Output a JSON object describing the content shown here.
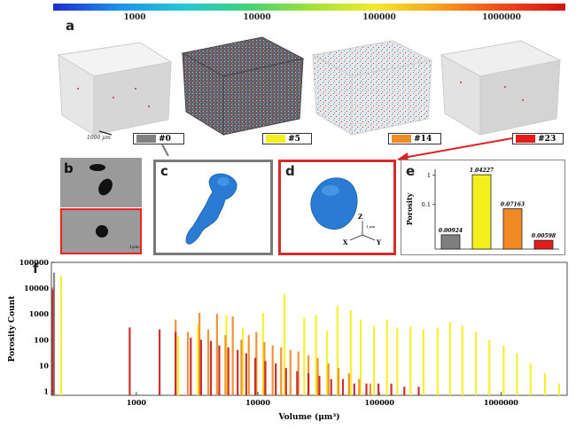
{
  "colorbar": {
    "ticks": [
      "1000",
      "10000",
      "100000",
      "1000000"
    ]
  },
  "panels": {
    "a": {
      "letter": "a",
      "scale_label": "1000 μm",
      "samples": [
        {
          "label": "#0",
          "color": "#7f7f7f"
        },
        {
          "label": "#5",
          "color": "#f4f01e"
        },
        {
          "label": "#14",
          "color": "#f08a25"
        },
        {
          "label": "#23",
          "color": "#e51b1b"
        }
      ]
    },
    "b": {
      "letter": "b",
      "scale_label": "1μm"
    },
    "c": {
      "letter": "c"
    },
    "d": {
      "letter": "d",
      "axes": {
        "z": "Z",
        "x": "X",
        "y": "Y",
        "scale": "1 μm"
      }
    },
    "e": {
      "letter": "e"
    },
    "f": {
      "letter": "f"
    }
  },
  "chart_data": [
    {
      "type": "bar",
      "ylabel": "Porosity",
      "yscale": "log",
      "yticks": [
        "1",
        "0.1"
      ],
      "categories": [
        "#0",
        "#5",
        "#14",
        "#23"
      ],
      "values": [
        0.00924,
        1.04227,
        0.07163,
        0.00598
      ],
      "value_labels": [
        "0.00924",
        "1.04227",
        "0.07163",
        "0.00598"
      ],
      "colors": [
        "#7f7f7f",
        "#f4f01e",
        "#f08a25",
        "#e51b1b"
      ]
    },
    {
      "type": "bar",
      "xlabel": "Volume (μm³)",
      "ylabel": "Porosity Count",
      "xscale": "log",
      "yscale": "log",
      "xticks": [
        "1000",
        "10000",
        "100000",
        "1000000"
      ],
      "yticks": [
        "1",
        "10",
        "100",
        "1000",
        "10000",
        "100000"
      ],
      "xlim": [
        200,
        3500000
      ],
      "ylim": [
        0.7,
        100000
      ],
      "series": [
        {
          "color": "#7f7f7f",
          "x": [
            210
          ],
          "values": [
            40000
          ]
        },
        {
          "color": "#f4f01e",
          "x": [
            240,
            2200,
            3200,
            5500,
            7500,
            11000,
            16500,
            24000,
            30000,
            37000,
            45000,
            58000,
            70000,
            90000,
            115000,
            140000,
            180000,
            230000,
            300000,
            380000,
            480000,
            620000,
            800000,
            1050000,
            1350000,
            1750000,
            2300000,
            3000000
          ],
          "values": [
            30000,
            140,
            400,
            900,
            280,
            1100,
            5800,
            700,
            900,
            220,
            2000,
            1400,
            600,
            350,
            600,
            300,
            320,
            250,
            300,
            500,
            350,
            200,
            100,
            60,
            30,
            12,
            5,
            2
          ]
        },
        {
          "color": "#f08a25",
          "x": [
            2100,
            2650,
            3300,
            3900,
            4600,
            5400,
            6200,
            7300,
            8400,
            9700,
            11300,
            13200,
            15500,
            18500,
            21500,
            26000,
            31000,
            38000,
            46000,
            56000,
            68000,
            84000
          ],
          "values": [
            600,
            200,
            1100,
            250,
            1000,
            150,
            800,
            100,
            150,
            200,
            80,
            60,
            50,
            40,
            35,
            25,
            20,
            12,
            8,
            5,
            3,
            2
          ]
        },
        {
          "color": "#c62121",
          "x": [
            205,
            880,
            1550,
            2100,
            2800,
            3400,
            4100,
            4800,
            5700,
            6800,
            8000,
            9500,
            11500,
            14000,
            17000,
            21000,
            26000,
            32000,
            40000,
            50000,
            62000,
            78000,
            98000,
            125000,
            160000,
            210000
          ],
          "values": [
            9000,
            300,
            250,
            200,
            120,
            100,
            90,
            60,
            50,
            40,
            30,
            20,
            15,
            12,
            8,
            6,
            5,
            4,
            3,
            3,
            2,
            2,
            2,
            2,
            1.5,
            1.5
          ]
        }
      ]
    }
  ]
}
